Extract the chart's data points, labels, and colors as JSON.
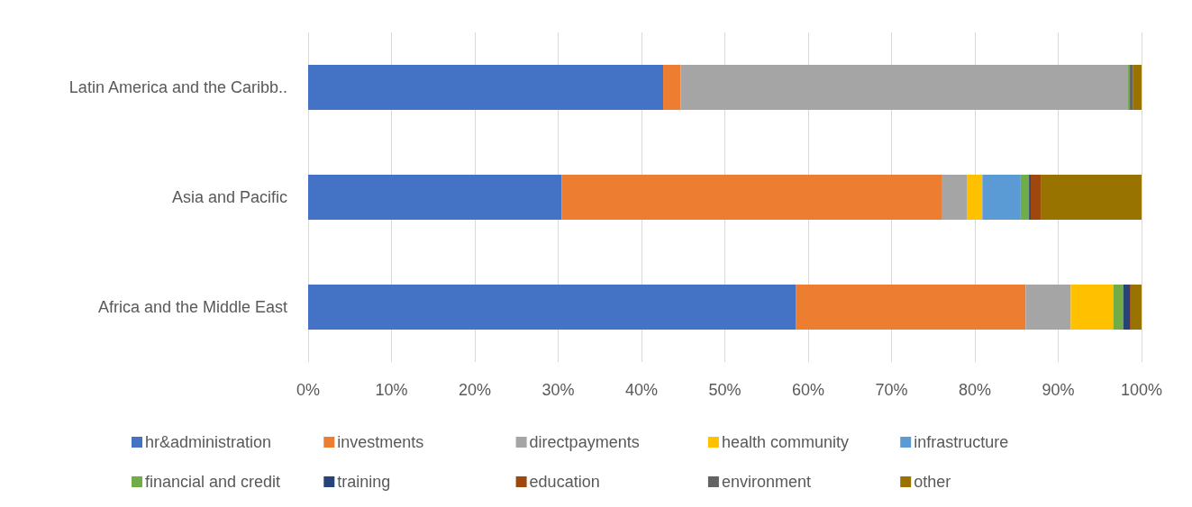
{
  "chart_data": {
    "type": "bar",
    "orientation": "horizontal",
    "stacked": true,
    "grid": "x",
    "legend": "bottom",
    "categories": [
      "Latin America and the Caribb..",
      "Asia and Pacific",
      "Africa and the Middle East"
    ],
    "xlim": [
      0,
      100
    ],
    "xticks": [
      {
        "value": 0,
        "label": "0%"
      },
      {
        "value": 10,
        "label": "10%"
      },
      {
        "value": 20,
        "label": "20%"
      },
      {
        "value": 30,
        "label": "30%"
      },
      {
        "value": 40,
        "label": "40%"
      },
      {
        "value": 50,
        "label": "50%"
      },
      {
        "value": 60,
        "label": "60%"
      },
      {
        "value": 70,
        "label": "70%"
      },
      {
        "value": 80,
        "label": "80%"
      },
      {
        "value": 90,
        "label": "90%"
      },
      {
        "value": 100,
        "label": "100%"
      }
    ],
    "series": [
      {
        "name": "hr&administration",
        "color": "#4472c4",
        "values": [
          42.6,
          30.4,
          58.5
        ]
      },
      {
        "name": "investments",
        "color": "#ed7d31",
        "values": [
          2.1,
          45.6,
          27.6
        ]
      },
      {
        "name": "directpayments",
        "color": "#a5a5a5",
        "values": [
          53.6,
          3.1,
          5.4
        ]
      },
      {
        "name": "health community",
        "color": "#ffc000",
        "values": [
          null,
          1.8,
          5.1
        ]
      },
      {
        "name": "infrastructure",
        "color": "#5b9bd5",
        "values": [
          null,
          4.6,
          null
        ]
      },
      {
        "name": "financial and credit",
        "color": "#70ad47",
        "values": [
          0.3,
          1.0,
          1.2
        ]
      },
      {
        "name": "training",
        "color": "#264478",
        "values": [
          null,
          0.2,
          0.8
        ]
      },
      {
        "name": "education",
        "color": "#9e480e",
        "values": [
          null,
          1.2,
          0.1
        ]
      },
      {
        "name": "environment",
        "color": "#636363",
        "values": [
          0.4,
          null,
          null
        ]
      },
      {
        "name": "other",
        "color": "#997300",
        "values": [
          1.0,
          12.1,
          1.3
        ]
      }
    ]
  }
}
